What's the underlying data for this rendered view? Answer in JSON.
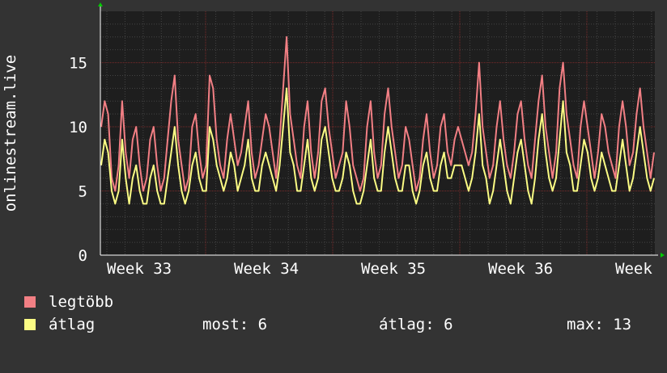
{
  "chart_data": {
    "type": "line",
    "ylabel": "onlinestream.live",
    "ylim": [
      0,
      19
    ],
    "yticks": [
      0,
      5,
      10,
      15
    ],
    "xticks": [
      "Week 33",
      "Week 34",
      "Week 35",
      "Week 36",
      "Week"
    ],
    "grid": true,
    "colors": {
      "background": "#333333",
      "plot": "#1e1e1e",
      "grid_major": "#7a2a2a",
      "grid_minor": "#444444",
      "axis": "#ffffff"
    },
    "series": [
      {
        "name": "legtöbb",
        "color": "#f27f84",
        "values": [
          10,
          12,
          11,
          6,
          5,
          7,
          12,
          8,
          6,
          9,
          10,
          7,
          5,
          6,
          9,
          10,
          7,
          5,
          6,
          9,
          12,
          14,
          9,
          7,
          5,
          6,
          10,
          11,
          8,
          6,
          7,
          14,
          13,
          9,
          7,
          6,
          9,
          11,
          9,
          7,
          8,
          10,
          12,
          8,
          6,
          7,
          9,
          11,
          10,
          8,
          6,
          9,
          13,
          17,
          11,
          9,
          7,
          6,
          10,
          12,
          8,
          6,
          8,
          12,
          13,
          10,
          8,
          6,
          7,
          8,
          12,
          10,
          7,
          6,
          5,
          6,
          10,
          12,
          8,
          6,
          7,
          11,
          13,
          10,
          8,
          6,
          7,
          10,
          9,
          7,
          5,
          6,
          9,
          11,
          8,
          6,
          7,
          10,
          11,
          8,
          7,
          9,
          10,
          9,
          8,
          7,
          8,
          11,
          15,
          10,
          8,
          6,
          7,
          10,
          12,
          9,
          7,
          6,
          8,
          11,
          12,
          9,
          7,
          6,
          9,
          12,
          14,
          10,
          8,
          6,
          8,
          13,
          15,
          11,
          9,
          7,
          6,
          10,
          12,
          10,
          8,
          6,
          8,
          11,
          10,
          8,
          7,
          6,
          10,
          12,
          10,
          7,
          8,
          11,
          13,
          10,
          8,
          6,
          8
        ]
      },
      {
        "name": "átlag",
        "color": "#fbfc84",
        "values": [
          7,
          9,
          8,
          5,
          4,
          5,
          9,
          6,
          4,
          6,
          7,
          5,
          4,
          4,
          6,
          7,
          5,
          4,
          4,
          6,
          8,
          10,
          7,
          5,
          4,
          5,
          7,
          8,
          6,
          5,
          5,
          10,
          9,
          7,
          6,
          5,
          6,
          8,
          7,
          5,
          6,
          7,
          9,
          6,
          5,
          5,
          7,
          8,
          7,
          6,
          5,
          7,
          10,
          13,
          8,
          7,
          5,
          5,
          7,
          9,
          6,
          5,
          6,
          9,
          10,
          8,
          6,
          5,
          5,
          6,
          8,
          7,
          5,
          4,
          4,
          5,
          7,
          9,
          6,
          5,
          5,
          8,
          10,
          8,
          6,
          5,
          5,
          7,
          7,
          5,
          4,
          5,
          7,
          8,
          6,
          5,
          5,
          7,
          8,
          6,
          6,
          7,
          7,
          7,
          6,
          5,
          6,
          8,
          11,
          7,
          6,
          4,
          5,
          7,
          9,
          7,
          5,
          4,
          6,
          8,
          9,
          7,
          5,
          4,
          6,
          9,
          11,
          8,
          6,
          5,
          6,
          9,
          12,
          8,
          7,
          5,
          5,
          7,
          9,
          8,
          6,
          5,
          6,
          8,
          7,
          6,
          5,
          5,
          7,
          9,
          7,
          5,
          6,
          8,
          10,
          8,
          6,
          5,
          6
        ]
      }
    ],
    "legend": {
      "items": [
        {
          "label": "legtöbb",
          "color": "#f27f84"
        },
        {
          "label": "átlag",
          "color": "#fbfc84"
        }
      ]
    },
    "stats": {
      "now": "most: 6",
      "avg": "átlag: 6",
      "max": "max: 13"
    }
  }
}
